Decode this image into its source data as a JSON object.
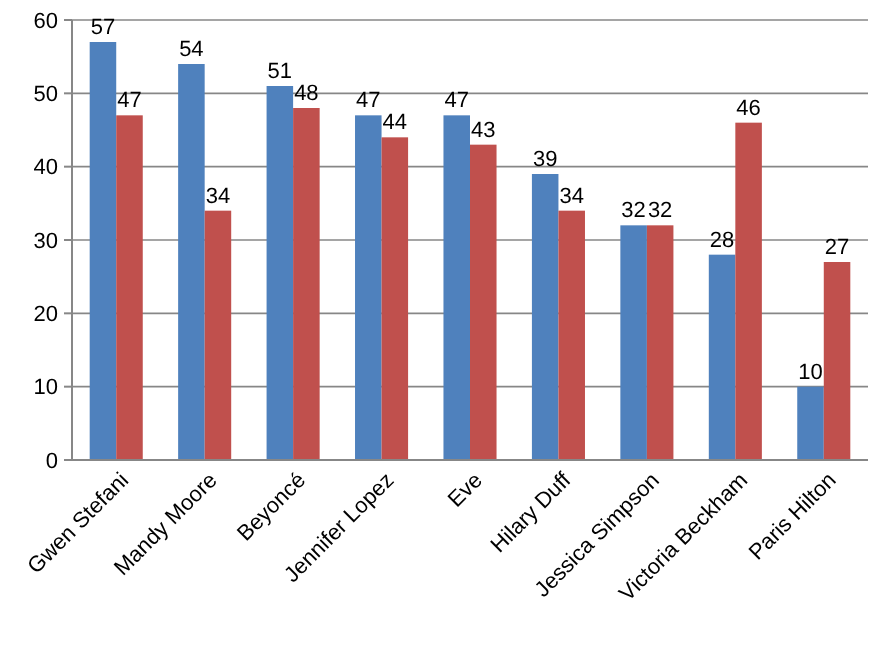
{
  "chart_data": {
    "type": "bar",
    "categories": [
      "Gwen Stefani",
      "Mandy Moore",
      "Beyoncé",
      "Jennifer Lopez",
      "Eve",
      "Hilary Duff",
      "Jessica Simpson",
      "Victoria Beckham",
      "Paris Hilton"
    ],
    "series": [
      {
        "color": "#4f81bd",
        "values": [
          57,
          54,
          51,
          47,
          47,
          39,
          32,
          28,
          10
        ]
      },
      {
        "color": "#c0504d",
        "values": [
          47,
          34,
          48,
          44,
          43,
          34,
          32,
          46,
          27
        ]
      }
    ],
    "ylim": [
      0,
      60
    ],
    "yticks": [
      0,
      10,
      20,
      30,
      40,
      50,
      60
    ],
    "grid": "y",
    "data_labels": true
  }
}
